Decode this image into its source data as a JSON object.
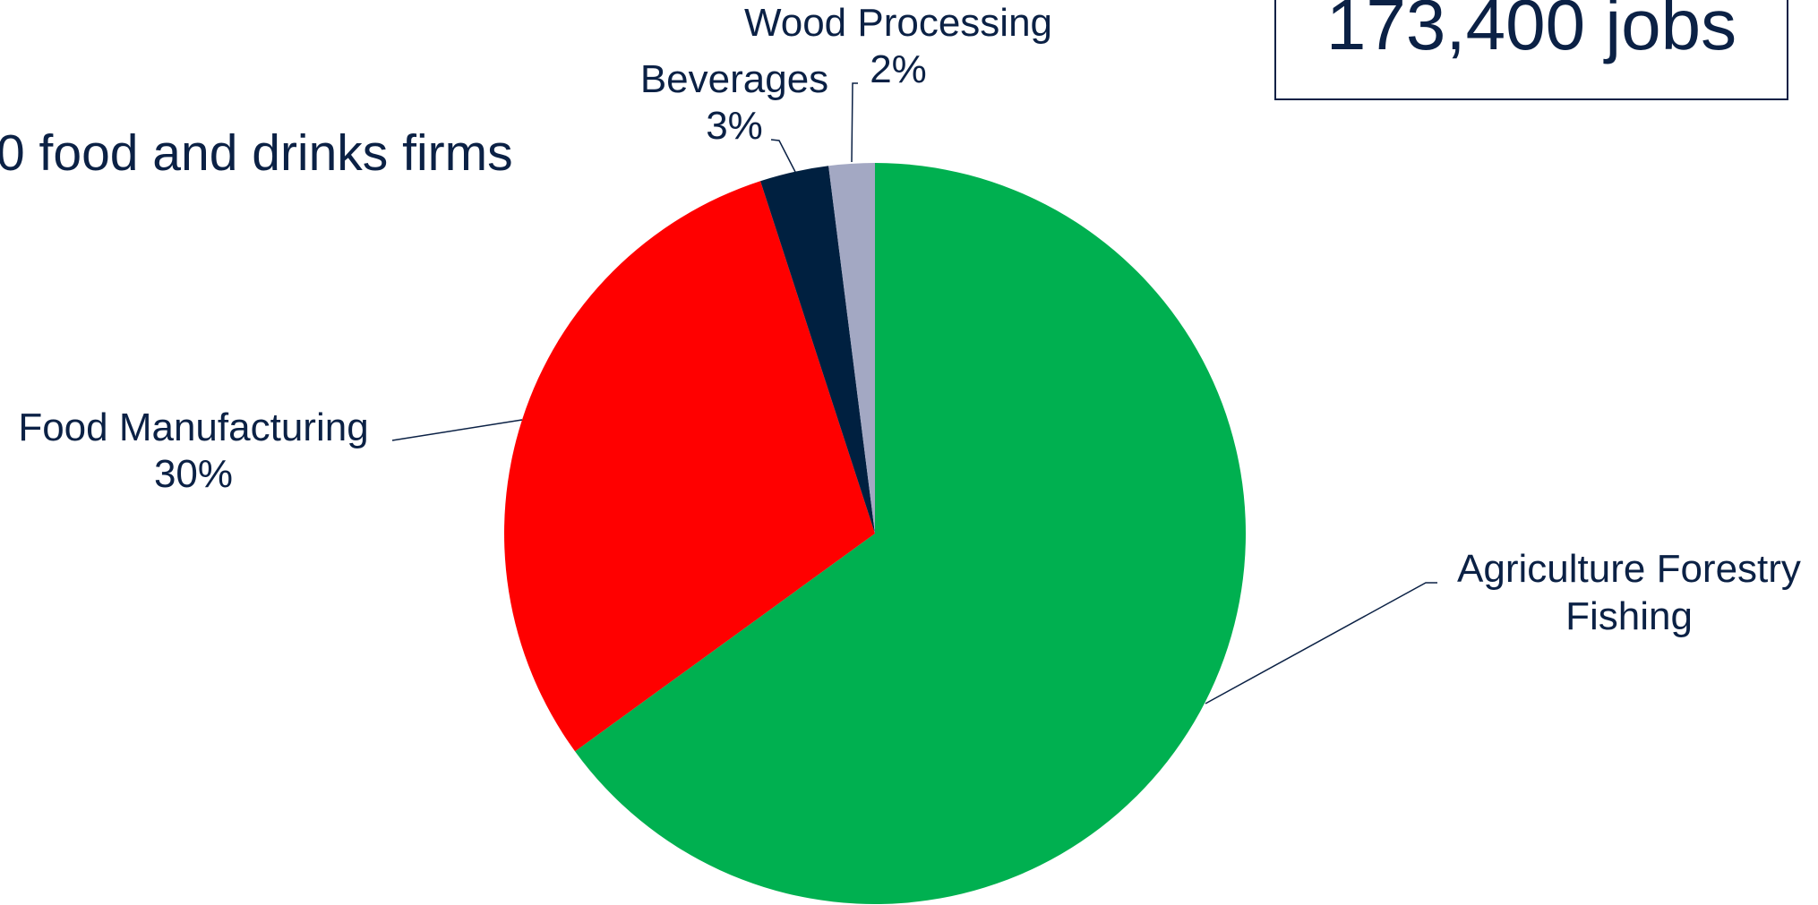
{
  "chart_data": {
    "type": "pie",
    "annotations": [
      "0 food and drinks firms",
      "173,400 jobs"
    ],
    "categories": [
      "Agriculture Forestry Fishing",
      "Food Manufacturing",
      "Beverages",
      "Wood Processing"
    ],
    "values": [
      65,
      30,
      3,
      2
    ],
    "value_labels": [
      null,
      "30%",
      "3%",
      "2%"
    ],
    "colors": [
      "#00b050",
      "#ff0000",
      "#002040",
      "#a3a8c3"
    ]
  }
}
